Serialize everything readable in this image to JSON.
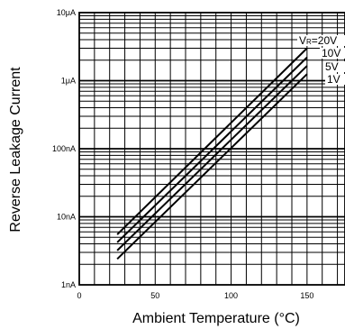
{
  "chart_data": {
    "type": "line",
    "xlabel": "Ambient Temperature (°C)",
    "ylabel": "Reverse Leakage Current",
    "xlim": [
      0,
      175
    ],
    "ylim": [
      1e-09,
      1e-05
    ],
    "y_scale": "log",
    "grid": true,
    "x_ticks": [
      {
        "value": 0,
        "label": "0"
      },
      {
        "value": 50,
        "label": "50"
      },
      {
        "value": 100,
        "label": "100"
      },
      {
        "value": 150,
        "label": "150"
      }
    ],
    "y_ticks": [
      {
        "value": 1e-09,
        "label": "1nA"
      },
      {
        "value": 1e-08,
        "label": "10nA"
      },
      {
        "value": 1e-07,
        "label": "100nA"
      },
      {
        "value": 1e-06,
        "label": "1μA"
      },
      {
        "value": 1e-05,
        "label": "10μA"
      }
    ],
    "series_label_prefix": {
      "main": "V",
      "sub": "R",
      "eq": "="
    },
    "series": [
      {
        "label": "20V",
        "x": [
          25,
          150
        ],
        "y": [
          5.5e-09,
          3e-06
        ]
      },
      {
        "label": "10V",
        "x": [
          25,
          150
        ],
        "y": [
          4.2e-09,
          2.2e-06
        ]
      },
      {
        "label": "5V",
        "x": [
          25,
          150
        ],
        "y": [
          3.2e-09,
          1.65e-06
        ]
      },
      {
        "label": "1V",
        "x": [
          25,
          150
        ],
        "y": [
          2.4e-09,
          1.25e-06
        ]
      }
    ]
  }
}
